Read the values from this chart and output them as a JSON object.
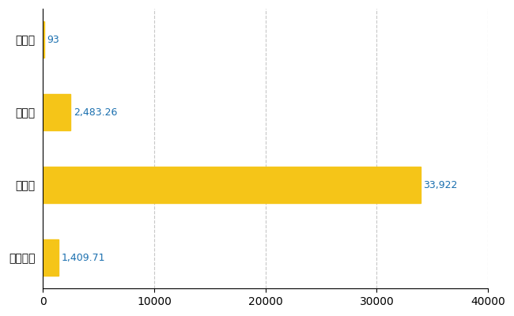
{
  "categories": [
    "全国平均",
    "県最大",
    "県平均",
    "設楽町"
  ],
  "values": [
    1409.71,
    33922,
    2483.26,
    93
  ],
  "labels": [
    "1,409.71",
    "33,922",
    "2,483.26",
    "93"
  ],
  "bar_color": "#F5C518",
  "background_color": "#ffffff",
  "grid_color": "#c8c8c8",
  "text_color": "#000000",
  "label_color": "#1a6faf",
  "xlim": [
    0,
    40000
  ],
  "xticks": [
    0,
    10000,
    20000,
    30000,
    40000
  ],
  "bar_height": 0.5,
  "label_fontsize": 9,
  "tick_fontsize": 10,
  "figsize": [
    6.5,
    4.0
  ],
  "dpi": 100
}
